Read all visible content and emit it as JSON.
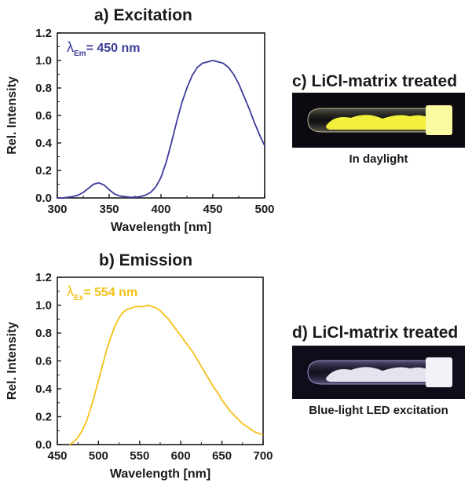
{
  "chart_data": [
    {
      "type": "line",
      "title": "a) Excitation",
      "xlabel": "Wavelength [nm]",
      "ylabel": "Rel. Intensity",
      "xlim": [
        300,
        500
      ],
      "ylim": [
        0,
        1.2
      ],
      "xticks": [
        "300",
        "350",
        "400",
        "450",
        "500"
      ],
      "yticks": [
        "0.0",
        "0.2",
        "0.4",
        "0.6",
        "0.8",
        "1.0",
        "1.2"
      ],
      "grid": false,
      "annotation": {
        "symbol": "λ",
        "subscript": "Em",
        "text": "= 450 nm"
      },
      "color": "#3b3a98",
      "series": [
        {
          "x": [
            300,
            305,
            310,
            315,
            320,
            325,
            330,
            335,
            340,
            345,
            350,
            355,
            360,
            365,
            370,
            375,
            380,
            385,
            390,
            395,
            400,
            405,
            410,
            415,
            420,
            425,
            430,
            435,
            440,
            445,
            450,
            455,
            460,
            465,
            470,
            475,
            480,
            485,
            490,
            495,
            500
          ],
          "y": [
            0.0,
            0.0,
            0.005,
            0.01,
            0.02,
            0.04,
            0.07,
            0.1,
            0.11,
            0.095,
            0.06,
            0.03,
            0.015,
            0.01,
            0.005,
            0.005,
            0.01,
            0.02,
            0.04,
            0.08,
            0.15,
            0.26,
            0.4,
            0.55,
            0.69,
            0.8,
            0.89,
            0.95,
            0.98,
            0.99,
            1.0,
            0.99,
            0.98,
            0.95,
            0.9,
            0.83,
            0.74,
            0.65,
            0.55,
            0.46,
            0.38
          ]
        }
      ]
    },
    {
      "type": "line",
      "title": "b) Emission",
      "xlabel": "Wavelength [nm]",
      "ylabel": "Rel. Intensity",
      "xlim": [
        450,
        700
      ],
      "ylim": [
        0,
        1.2
      ],
      "xticks": [
        "450",
        "500",
        "550",
        "600",
        "650",
        "700"
      ],
      "yticks": [
        "0.0",
        "0.2",
        "0.4",
        "0.6",
        "0.8",
        "1.0",
        "1.2"
      ],
      "grid": false,
      "annotation": {
        "symbol": "λ",
        "subscript": "Ex",
        "text": "= 554 nm"
      },
      "color": "#f5c015",
      "series": [
        {
          "x": [
            465,
            470,
            475,
            480,
            485,
            490,
            495,
            500,
            505,
            510,
            515,
            520,
            525,
            530,
            535,
            540,
            545,
            550,
            555,
            560,
            565,
            570,
            575,
            580,
            585,
            590,
            595,
            600,
            605,
            610,
            615,
            620,
            625,
            630,
            635,
            640,
            645,
            650,
            655,
            660,
            665,
            670,
            675,
            680,
            685,
            690,
            695,
            700
          ],
          "y": [
            0.0,
            0.02,
            0.05,
            0.1,
            0.16,
            0.25,
            0.35,
            0.46,
            0.57,
            0.68,
            0.77,
            0.85,
            0.91,
            0.95,
            0.97,
            0.98,
            0.99,
            0.99,
            0.99,
            1.0,
            0.99,
            0.98,
            0.96,
            0.93,
            0.9,
            0.86,
            0.82,
            0.78,
            0.74,
            0.7,
            0.66,
            0.61,
            0.56,
            0.51,
            0.46,
            0.41,
            0.37,
            0.32,
            0.28,
            0.24,
            0.21,
            0.18,
            0.15,
            0.13,
            0.11,
            0.09,
            0.08,
            0.07
          ]
        }
      ]
    }
  ],
  "photos": {
    "c": {
      "title": "c) LiCl-matrix treated",
      "caption": "In daylight",
      "glow_color": "#f2f03a",
      "cap_color": "#fafaa0"
    },
    "d": {
      "title": "d) LiCl-matrix treated",
      "caption": "Blue-light LED excitation",
      "glow_color": "#e6e2ee",
      "cap_color": "#f4f2f8"
    }
  }
}
